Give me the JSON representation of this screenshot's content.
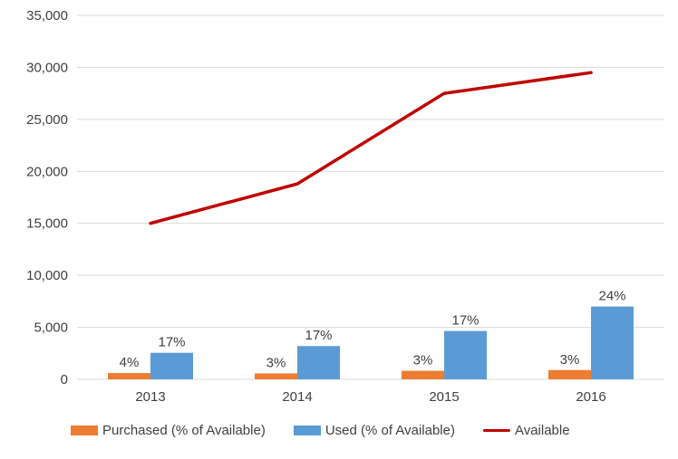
{
  "chart_data": {
    "type": "combo",
    "title": "",
    "xlabel": "",
    "ylabel": "",
    "categories": [
      "2013",
      "2014",
      "2015",
      "2016"
    ],
    "series": [
      {
        "name": "Purchased (% of Available)",
        "type": "bar",
        "color": "#ED7D31",
        "values": [
          600,
          570,
          820,
          890
        ],
        "labels": [
          "4%",
          "3%",
          "3%",
          "3%"
        ]
      },
      {
        "name": "Used (% of Available)",
        "type": "bar",
        "color": "#5B9BD5",
        "values": [
          2550,
          3200,
          4650,
          7000
        ],
        "labels": [
          "17%",
          "17%",
          "17%",
          "24%"
        ]
      },
      {
        "name": "Available",
        "type": "line",
        "color": "#C00000",
        "values": [
          15000,
          18800,
          27500,
          29500
        ]
      }
    ],
    "ylim": [
      0,
      35000
    ],
    "ytick_step": 5000,
    "ytick_labels": [
      "0",
      "5,000",
      "10,000",
      "15,000",
      "20,000",
      "25,000",
      "30,000",
      "35,000"
    ],
    "grid": "horizontal",
    "legend_position": "bottom"
  },
  "styles": {
    "background": "#FFFFFF",
    "gridline_color": "#D9D9D9",
    "axis_line_color": "#D9D9D9",
    "axis_text_color": "#404040",
    "data_label_color": "#404040",
    "line_stroke_width": 3.5
  }
}
